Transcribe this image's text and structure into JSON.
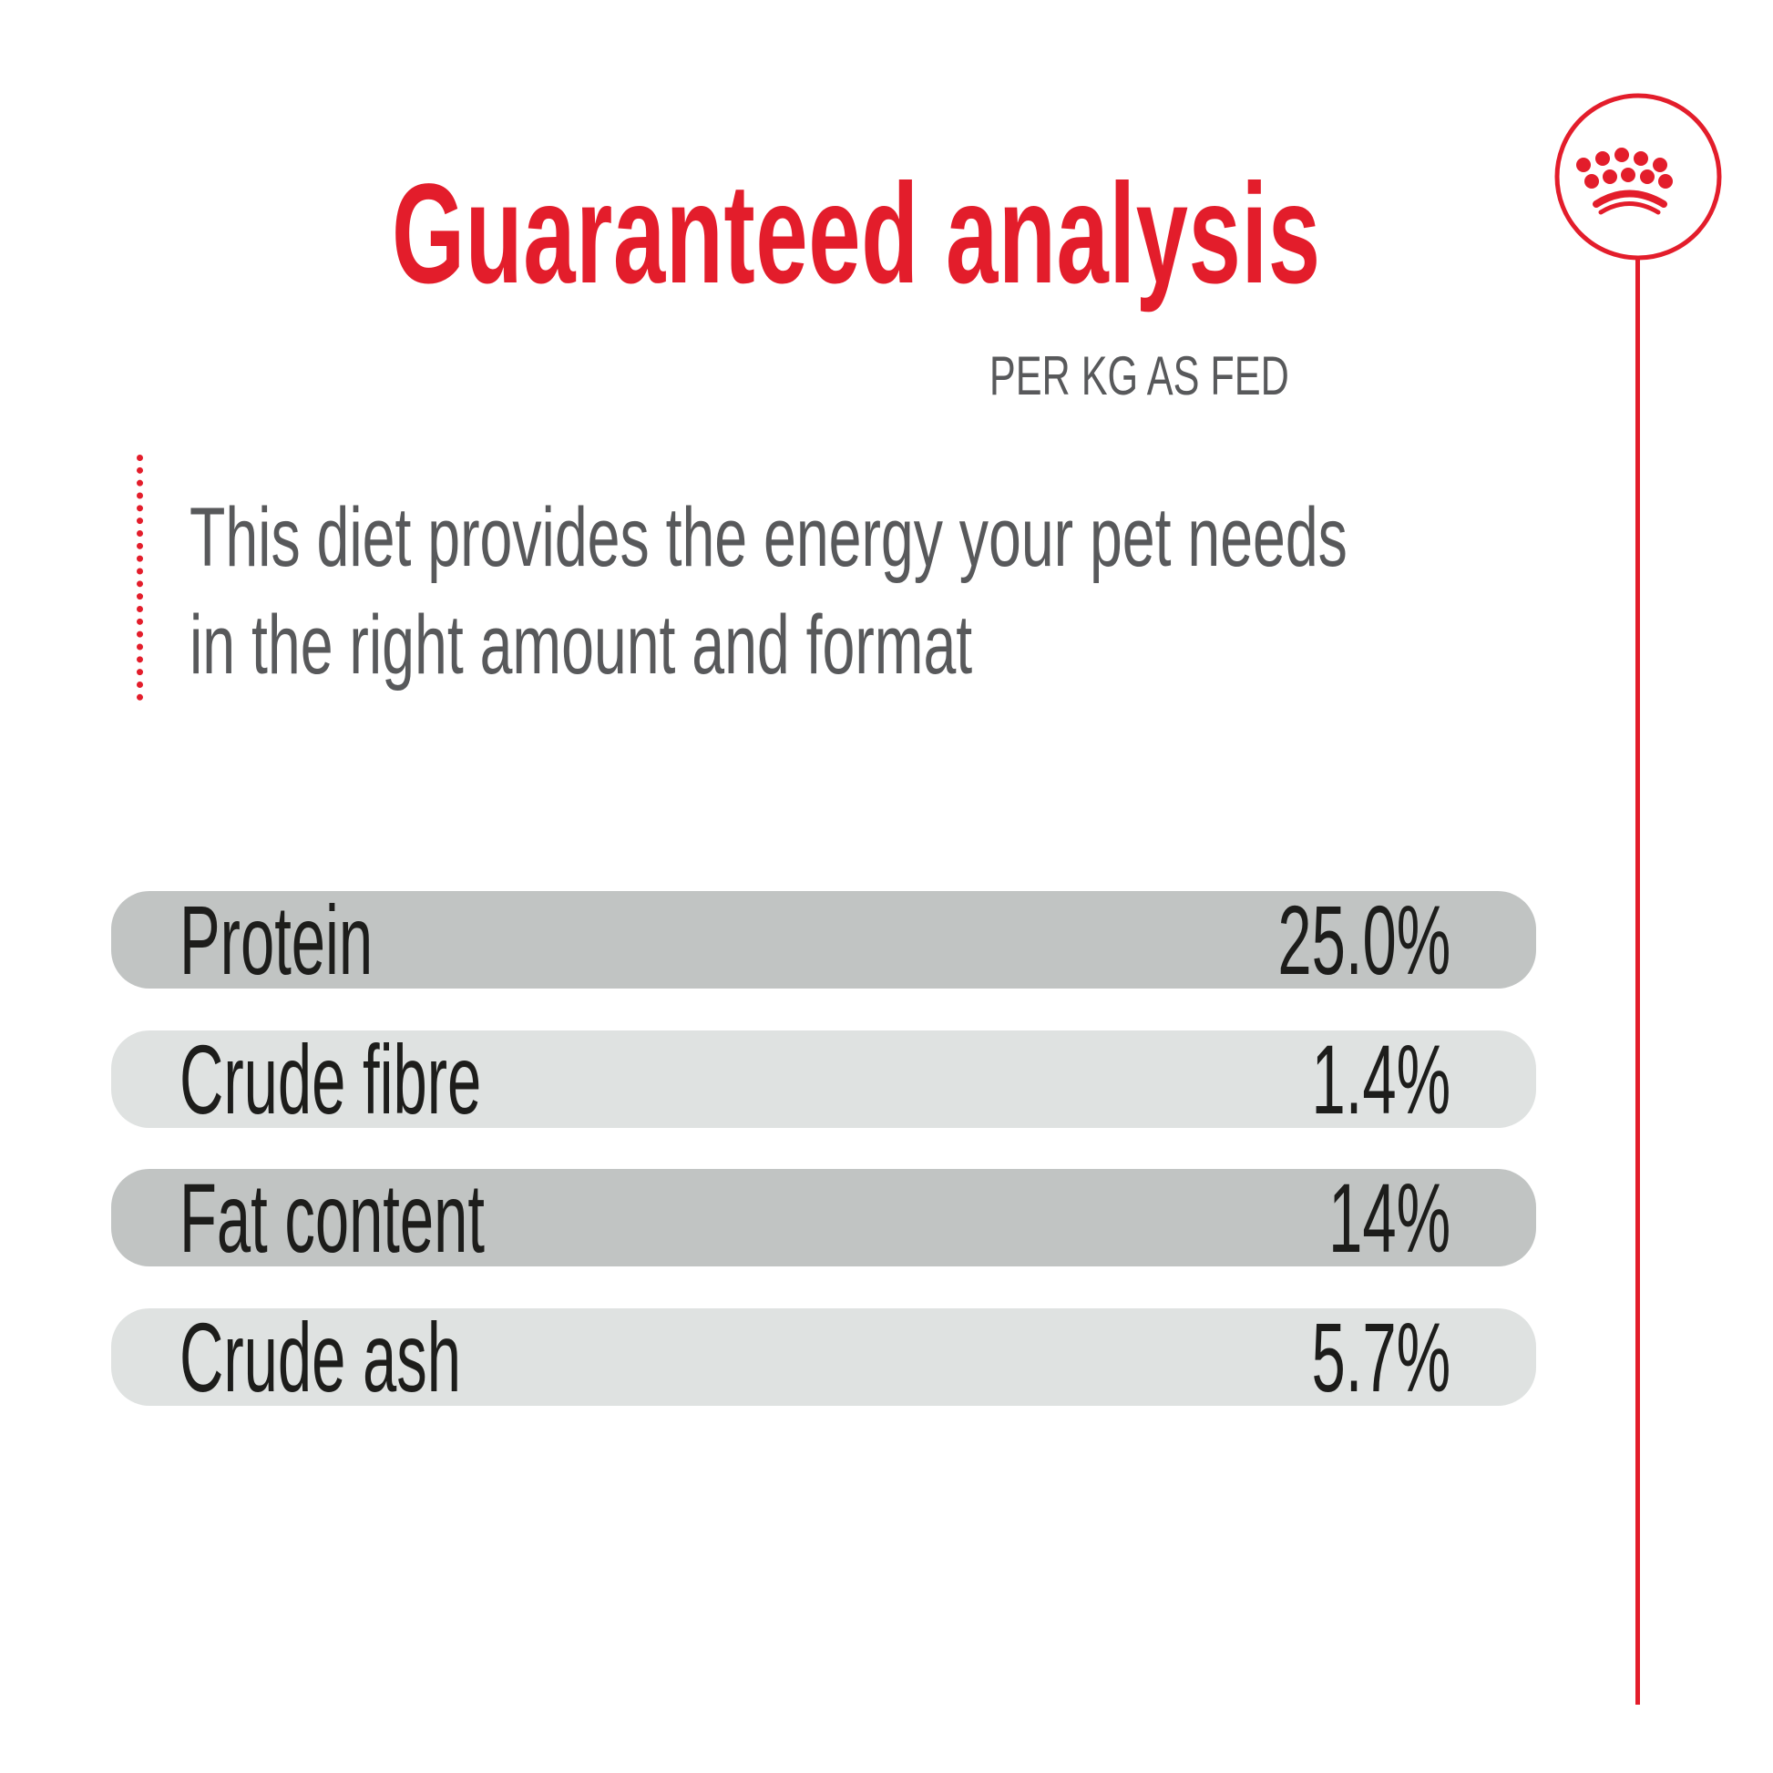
{
  "header": {
    "title": "Guaranteed analysis",
    "subtitle": "PER KG AS FED"
  },
  "description": {
    "lines": [
      "This diet provides the energy your pet needs",
      "in the right amount and format"
    ]
  },
  "analysis": [
    {
      "label": "Protein",
      "value": "25.0%"
    },
    {
      "label": "Crude fibre",
      "value": "1.4%"
    },
    {
      "label": "Fat content",
      "value": "14%"
    },
    {
      "label": "Crude ash",
      "value": "5.7%"
    }
  ],
  "logo": {
    "icon": "crown-icon",
    "brand_color": "#e31d2b"
  },
  "colors": {
    "accent": "#e31d2b",
    "row_dark": "#c1c4c3",
    "row_light": "#dfe2e1",
    "text_gray": "#58595b"
  }
}
